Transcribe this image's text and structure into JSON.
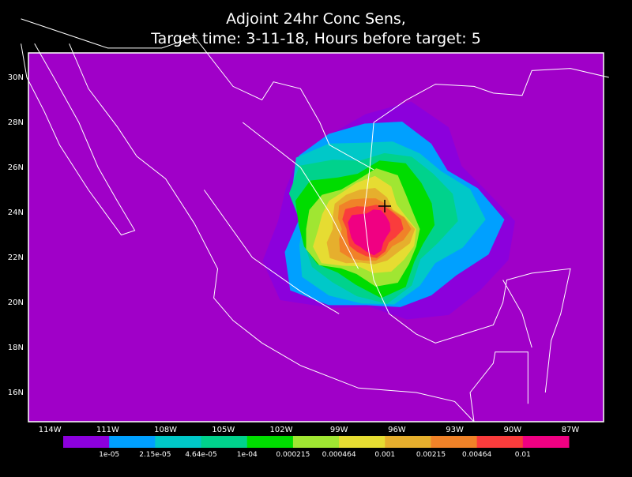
{
  "title": {
    "line1": "Adjoint 24hr Conc Sens,",
    "line2": "Target time: 3-11-18, Hours before target: 5"
  },
  "lat_labels": [
    "30N",
    "28N",
    "26N",
    "24N",
    "22N",
    "20N",
    "18N",
    "16N"
  ],
  "lon_labels": [
    "114W",
    "111W",
    "108W",
    "105W",
    "102W",
    "99W",
    "96W",
    "93W",
    "90W",
    "87W"
  ],
  "colorbar": {
    "colors": [
      "#8c00dc",
      "#00a0ff",
      "#00c8c8",
      "#00d28c",
      "#00dc00",
      "#a0e632",
      "#e6dc32",
      "#e6af2d",
      "#f08228",
      "#fa3c3c",
      "#f00082"
    ],
    "labels": [
      "1e-05",
      "2.15e-05",
      "4.64e-05",
      "1e-04",
      "0.000215",
      "0.000464",
      "0.001",
      "0.00215",
      "0.00464",
      "0.01"
    ]
  }
}
